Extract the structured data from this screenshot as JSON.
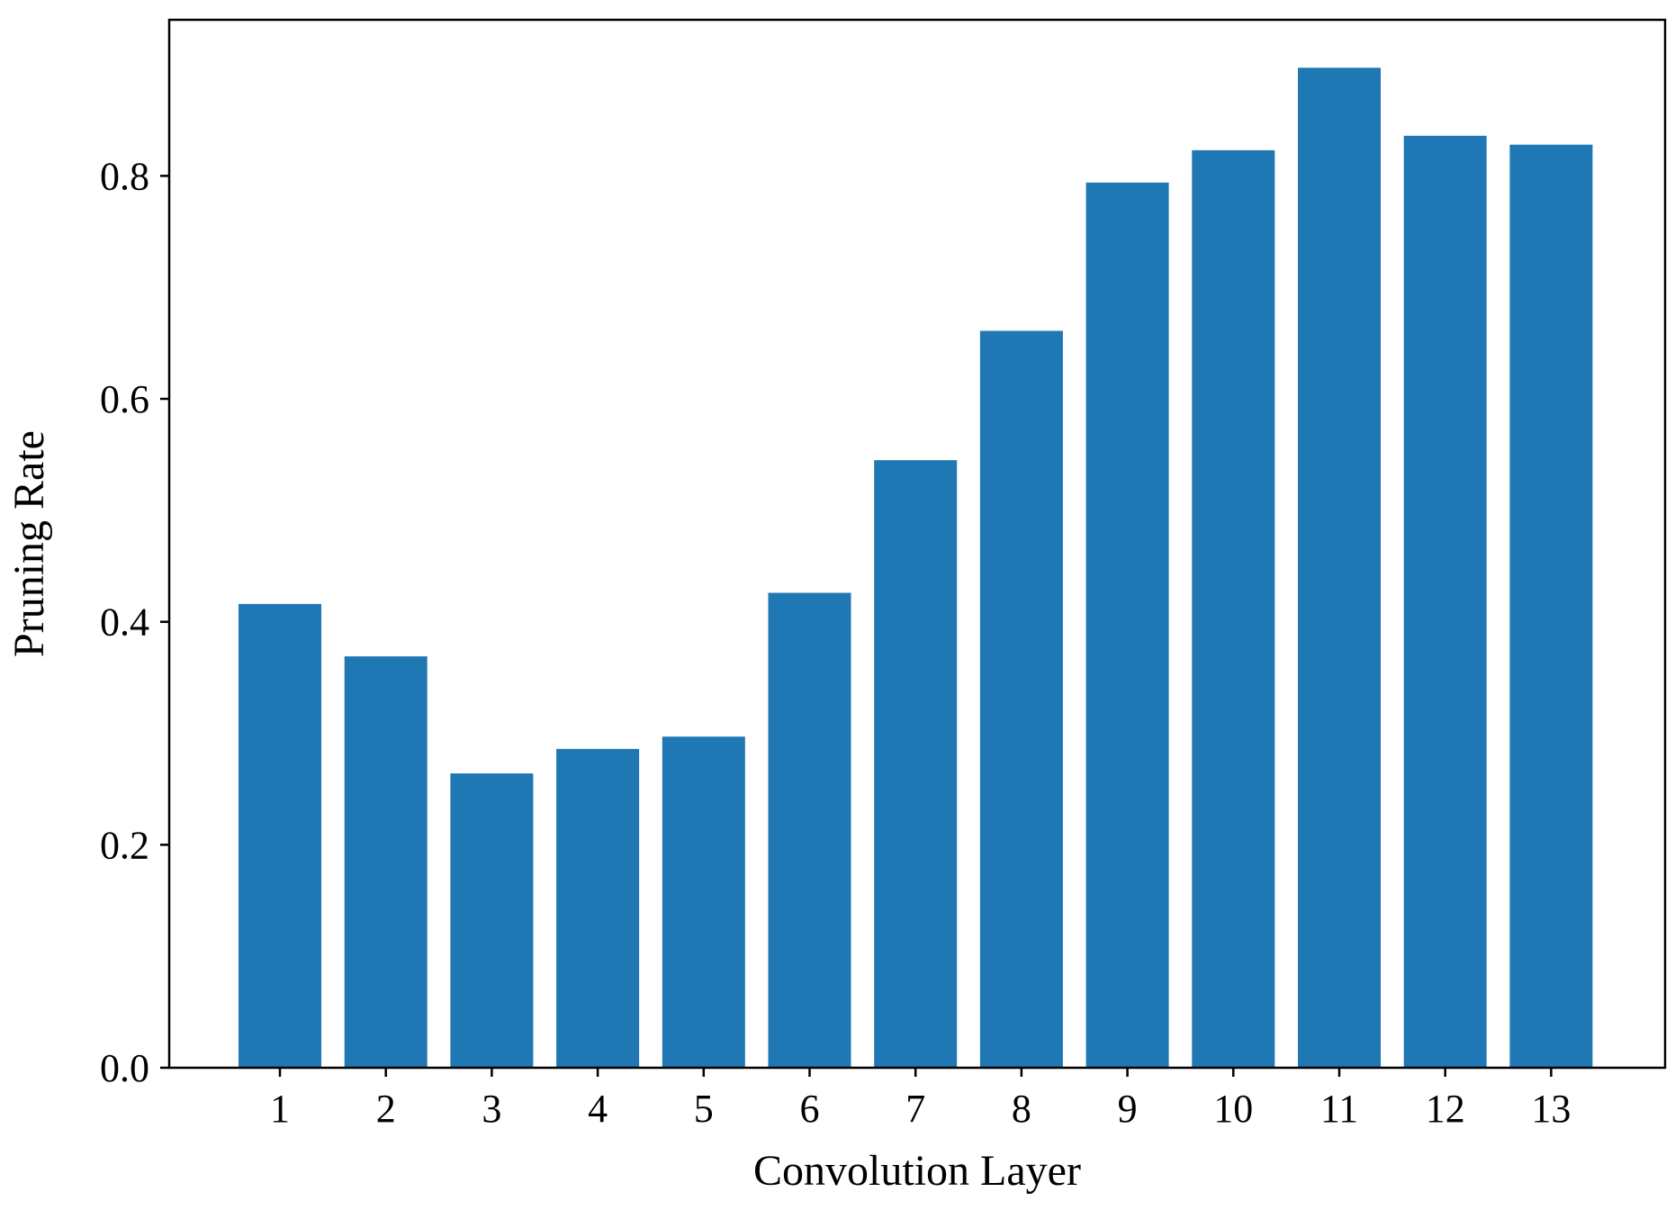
{
  "chart_data": {
    "type": "bar",
    "categories": [
      "1",
      "2",
      "3",
      "4",
      "5",
      "6",
      "7",
      "8",
      "9",
      "10",
      "11",
      "12",
      "13"
    ],
    "values": [
      0.416,
      0.369,
      0.264,
      0.286,
      0.297,
      0.426,
      0.545,
      0.661,
      0.794,
      0.823,
      0.897,
      0.836,
      0.828
    ],
    "title": "",
    "xlabel": "Convolution Layer",
    "ylabel": "Pruning Rate",
    "ylim": [
      0,
      0.94
    ],
    "yticks": [
      "0.0",
      "0.2",
      "0.4",
      "0.6",
      "0.8"
    ],
    "grid": false,
    "bar_color": "#1f77b4"
  }
}
